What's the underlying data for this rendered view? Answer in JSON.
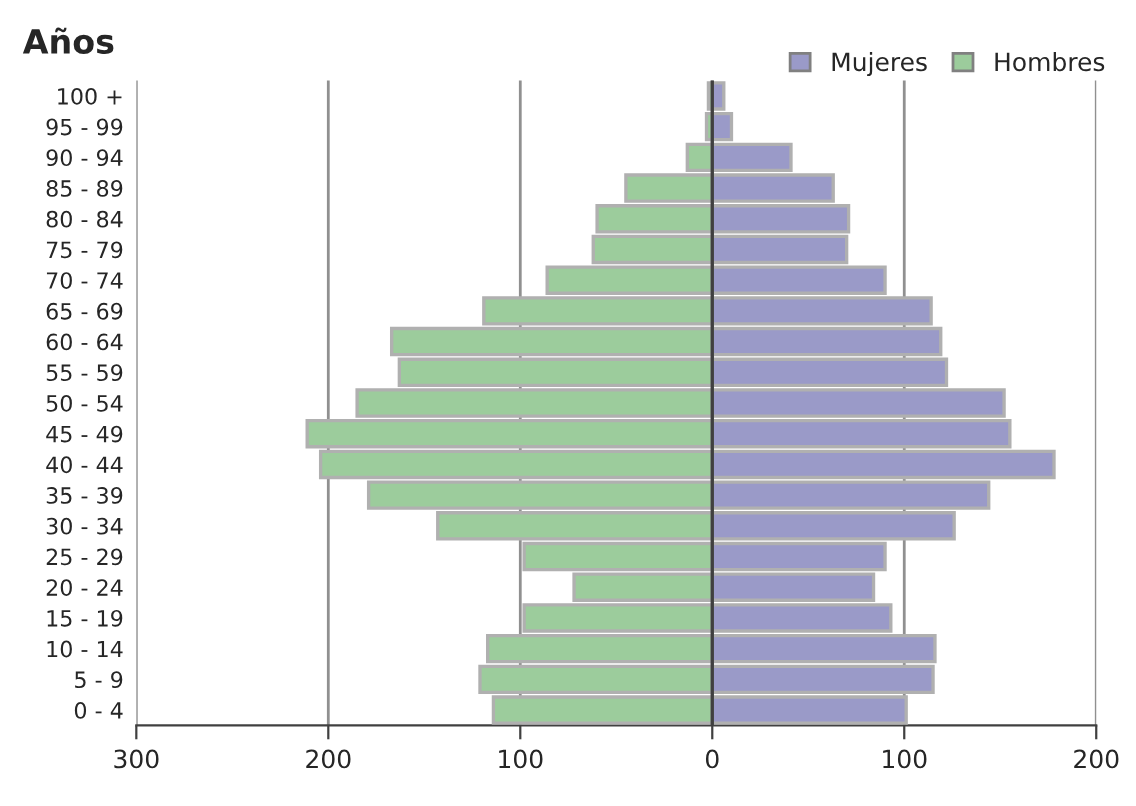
{
  "chart_data": {
    "type": "bar",
    "orientation": "horizontal",
    "ylabel": "Años",
    "categories": [
      "100 +",
      "95 - 99",
      "90 - 94",
      "85 - 89",
      "80 - 84",
      "75 - 79",
      "70 - 74",
      "65 - 69",
      "60 - 64",
      "55 - 59",
      "50 - 54",
      "45 - 49",
      "40 - 44",
      "35 - 39",
      "30 - 34",
      "25 - 29",
      "20 - 24",
      "15 - 19",
      "10 - 14",
      "5 - 9",
      "0 - 4"
    ],
    "series": [
      {
        "name": "Mujeres",
        "color": "#9a9ac8",
        "values": [
          6,
          10,
          41,
          63,
          71,
          70,
          90,
          114,
          119,
          122,
          152,
          155,
          178,
          144,
          126,
          90,
          84,
          93,
          116,
          115,
          101
        ]
      },
      {
        "name": "Hombres",
        "color": "#9ccc9c",
        "values": [
          -2,
          -3,
          -13,
          -45,
          -60,
          -62,
          -86,
          -119,
          -167,
          -163,
          -185,
          -211,
          -204,
          -179,
          -143,
          -98,
          -72,
          -98,
          -117,
          -121,
          -114
        ]
      }
    ],
    "xlim": [
      -300,
      200
    ],
    "xticks": [
      {
        "value": -300,
        "label": "300"
      },
      {
        "value": -200,
        "label": "200"
      },
      {
        "value": -100,
        "label": "100"
      },
      0,
      100,
      200
    ],
    "grid": "x",
    "legend": "top right",
    "stacked": true
  }
}
